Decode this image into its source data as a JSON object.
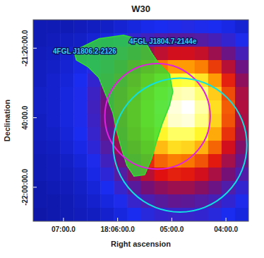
{
  "chart_data": {
    "type": "heatmap",
    "title": "W30",
    "x_label": "Right ascension",
    "y_label": "Declination",
    "xlim": [
      271.89,
      270.896
    ],
    "ylim": [
      -22.163,
      -21.197
    ],
    "xticks": [
      {
        "value": 271.75,
        "label": "07:00.0"
      },
      {
        "value": 271.5,
        "label": "18:06:00.0"
      },
      {
        "value": 271.25,
        "label": "05:00.0"
      },
      {
        "value": 271.0,
        "label": "04:00.0"
      }
    ],
    "yticks": [
      {
        "value": -21.3333,
        "label": "-21:20:00.0"
      },
      {
        "value": -21.6667,
        "label": "40:00.0"
      },
      {
        "value": -22.0,
        "label": "-22:00:00.0"
      }
    ],
    "color_range": [
      0,
      1
    ],
    "cells": [
      [
        0.15,
        0.15,
        0.15,
        0.16,
        0.17,
        0.18,
        0.2,
        0.22,
        0.24,
        0.25,
        0.26,
        0.27,
        0.26,
        0.25,
        0.23,
        0.2
      ],
      [
        0.15,
        0.16,
        0.17,
        0.18,
        0.2,
        0.22,
        0.25,
        0.3,
        0.33,
        0.36,
        0.38,
        0.38,
        0.37,
        0.34,
        0.3,
        0.26
      ],
      [
        0.16,
        0.17,
        0.19,
        0.21,
        0.24,
        0.28,
        0.34,
        0.42,
        0.5,
        0.55,
        0.58,
        0.58,
        0.56,
        0.5,
        0.42,
        0.34
      ],
      [
        0.17,
        0.18,
        0.2,
        0.23,
        0.27,
        0.33,
        0.42,
        0.55,
        0.65,
        0.72,
        0.76,
        0.76,
        0.73,
        0.65,
        0.54,
        0.42
      ],
      [
        0.17,
        0.19,
        0.21,
        0.25,
        0.3,
        0.38,
        0.5,
        0.63,
        0.74,
        0.83,
        0.88,
        0.89,
        0.85,
        0.76,
        0.62,
        0.48
      ],
      [
        0.18,
        0.19,
        0.22,
        0.26,
        0.32,
        0.42,
        0.55,
        0.68,
        0.8,
        0.9,
        0.95,
        0.96,
        0.92,
        0.82,
        0.67,
        0.52
      ],
      [
        0.18,
        0.19,
        0.22,
        0.26,
        0.33,
        0.43,
        0.57,
        0.7,
        0.82,
        0.92,
        0.98,
        1.0,
        0.95,
        0.84,
        0.69,
        0.53
      ],
      [
        0.17,
        0.19,
        0.22,
        0.26,
        0.32,
        0.42,
        0.56,
        0.7,
        0.82,
        0.91,
        0.97,
        0.98,
        0.93,
        0.83,
        0.68,
        0.52
      ],
      [
        0.17,
        0.18,
        0.21,
        0.25,
        0.31,
        0.4,
        0.53,
        0.67,
        0.78,
        0.87,
        0.91,
        0.91,
        0.87,
        0.78,
        0.64,
        0.5
      ],
      [
        0.16,
        0.17,
        0.2,
        0.23,
        0.29,
        0.37,
        0.49,
        0.61,
        0.72,
        0.8,
        0.84,
        0.83,
        0.79,
        0.7,
        0.58,
        0.46
      ],
      [
        0.15,
        0.16,
        0.18,
        0.21,
        0.26,
        0.33,
        0.43,
        0.54,
        0.63,
        0.7,
        0.73,
        0.72,
        0.68,
        0.61,
        0.51,
        0.41
      ],
      [
        0.15,
        0.16,
        0.17,
        0.19,
        0.23,
        0.29,
        0.37,
        0.46,
        0.54,
        0.6,
        0.62,
        0.61,
        0.58,
        0.52,
        0.44,
        0.36
      ],
      [
        0.14,
        0.15,
        0.16,
        0.18,
        0.21,
        0.25,
        0.31,
        0.38,
        0.44,
        0.48,
        0.5,
        0.5,
        0.47,
        0.42,
        0.36,
        0.3
      ],
      [
        0.14,
        0.14,
        0.15,
        0.17,
        0.19,
        0.22,
        0.26,
        0.31,
        0.35,
        0.38,
        0.4,
        0.39,
        0.37,
        0.34,
        0.3,
        0.26
      ],
      [
        0.13,
        0.14,
        0.15,
        0.16,
        0.17,
        0.19,
        0.22,
        0.25,
        0.28,
        0.3,
        0.31,
        0.31,
        0.3,
        0.28,
        0.25,
        0.22
      ]
    ],
    "contour": {
      "color": "#33dd33",
      "ra": [
        271.701,
        271.587,
        271.473,
        271.375,
        271.343,
        271.31,
        271.261,
        271.245,
        271.261,
        271.294,
        271.32,
        271.343,
        271.375,
        271.424,
        271.457,
        271.483,
        271.505,
        271.522,
        271.554,
        271.587,
        271.636,
        271.691
      ],
      "dec": [
        -21.346,
        -21.288,
        -21.271,
        -21.298,
        -21.356,
        -21.407,
        -21.457,
        -21.542,
        -21.609,
        -21.694,
        -21.778,
        -21.863,
        -21.94,
        -21.947,
        -21.896,
        -21.812,
        -21.727,
        -21.643,
        -21.559,
        -21.474,
        -21.423,
        -21.39
      ]
    },
    "regions": [
      {
        "color": "#e020e0",
        "ra": 271.316,
        "dec": -21.66,
        "radius": 0.253
      },
      {
        "color": "#10e0e0",
        "ra": 271.212,
        "dec": -21.798,
        "radius": 0.321
      }
    ],
    "annotations": [
      {
        "text": "4FGL J1804.7-2144e",
        "color": "#30d0f0"
      },
      {
        "text": "4FGL J1806.2-2126",
        "color": "#30d0f0"
      }
    ]
  }
}
